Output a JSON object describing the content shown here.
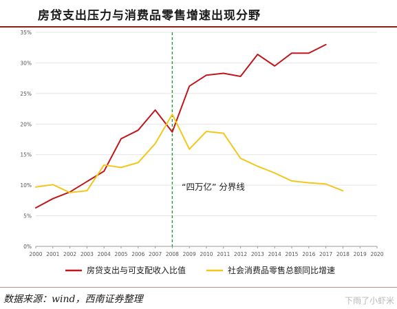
{
  "title": "房贷支出压力与消费品零售增速出现分野",
  "source": "数据来源：wind，西南证券整理",
  "watermark": "下雨了小虾米",
  "chart_data": {
    "type": "line",
    "x": [
      2000,
      2001,
      2002,
      2003,
      2004,
      2005,
      2006,
      2007,
      2008,
      2009,
      2010,
      2011,
      2012,
      2013,
      2014,
      2015,
      2016,
      2017,
      2018,
      2019,
      2020
    ],
    "x_tick_labels": [
      "2000",
      "2001",
      "2002",
      "2003",
      "2004",
      "2005",
      "2006",
      "2007",
      "2008",
      "2009",
      "2010",
      "2011",
      "2012",
      "2013",
      "2014",
      "2015",
      "2016",
      "2017",
      "2018",
      "2019",
      "2020"
    ],
    "y_tick_labels": [
      "0%",
      "5%",
      "10%",
      "15%",
      "20%",
      "25%",
      "30%",
      "35%"
    ],
    "ylim": [
      0,
      35
    ],
    "grid": "horizontal",
    "legend_position": "bottom",
    "series": [
      {
        "name": "房贷支出与可支配收入比值",
        "color": "#c0161b",
        "values": [
          6.3,
          7.8,
          8.9,
          10.6,
          12.3,
          17.6,
          19.0,
          22.3,
          18.7,
          26.2,
          28.0,
          28.3,
          27.8,
          31.4,
          29.5,
          31.6,
          31.6,
          33.0,
          null,
          null,
          null
        ]
      },
      {
        "name": "社会消费品零售总额同比增速",
        "color": "#f3c61a",
        "values": [
          9.7,
          10.1,
          8.8,
          9.1,
          13.3,
          12.9,
          13.7,
          16.8,
          21.6,
          15.9,
          18.8,
          18.5,
          14.4,
          13.1,
          12.0,
          10.7,
          10.4,
          10.2,
          9.1,
          null,
          null
        ]
      }
    ],
    "vline": {
      "x": 2008,
      "color": "#1f9a3a",
      "style": "dashed"
    },
    "annotation": "“四万亿” 分界线"
  }
}
